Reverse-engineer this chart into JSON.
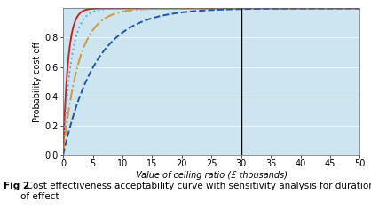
{
  "xlabel": "Value of ceiling ratio (£ thousands)",
  "ylabel": "Probability cost eff",
  "xlim": [
    0,
    50
  ],
  "ylim": [
    0,
    1.0
  ],
  "xticks": [
    0,
    5,
    10,
    15,
    20,
    25,
    30,
    35,
    40,
    45,
    50
  ],
  "yticks": [
    0,
    0.2,
    0.4,
    0.6,
    0.8
  ],
  "vline_x": 30,
  "background_color": "#cce5f0",
  "curves": [
    {
      "color": "#cc2222",
      "linestyle": "solid",
      "scale": 1.2
    },
    {
      "color": "#55aadd",
      "linestyle": "dotted",
      "scale": 0.75
    },
    {
      "color": "#cc9944",
      "linestyle": "dashdot",
      "scale": 0.38
    },
    {
      "color": "#2255aa",
      "linestyle": "dashed",
      "scale": 0.18
    }
  ],
  "caption_bold": "Fig 2",
  "caption_rest": "  Cost effectiveness acceptability curve with sensitivity analysis for duration\nof effect",
  "caption_fontsize": 7.5
}
